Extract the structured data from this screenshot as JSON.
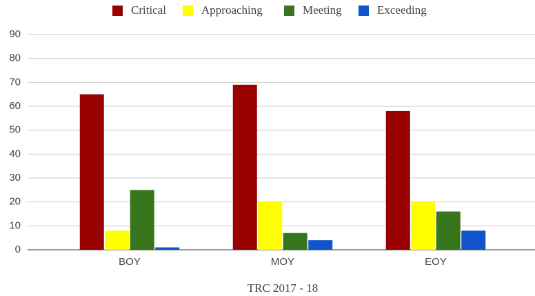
{
  "chart_data": {
    "type": "bar",
    "x_label": "TRC 2017 - 18",
    "categories": [
      "BOY",
      "MOY",
      "EOY"
    ],
    "series": [
      {
        "name": "Critical",
        "color": "#990000",
        "values": [
          65,
          69,
          58
        ]
      },
      {
        "name": "Approaching",
        "color": "#ffff00",
        "values": [
          8,
          20,
          20
        ]
      },
      {
        "name": "Meeting",
        "color": "#38761d",
        "values": [
          25,
          7,
          16
        ]
      },
      {
        "name": "Exceeding",
        "color": "#1155cc",
        "values": [
          1,
          4,
          8
        ]
      }
    ],
    "ylim": [
      0,
      90
    ],
    "yticks": [
      0,
      10,
      20,
      30,
      40,
      50,
      60,
      70,
      80,
      90
    ],
    "grid": true,
    "legend": "top"
  }
}
